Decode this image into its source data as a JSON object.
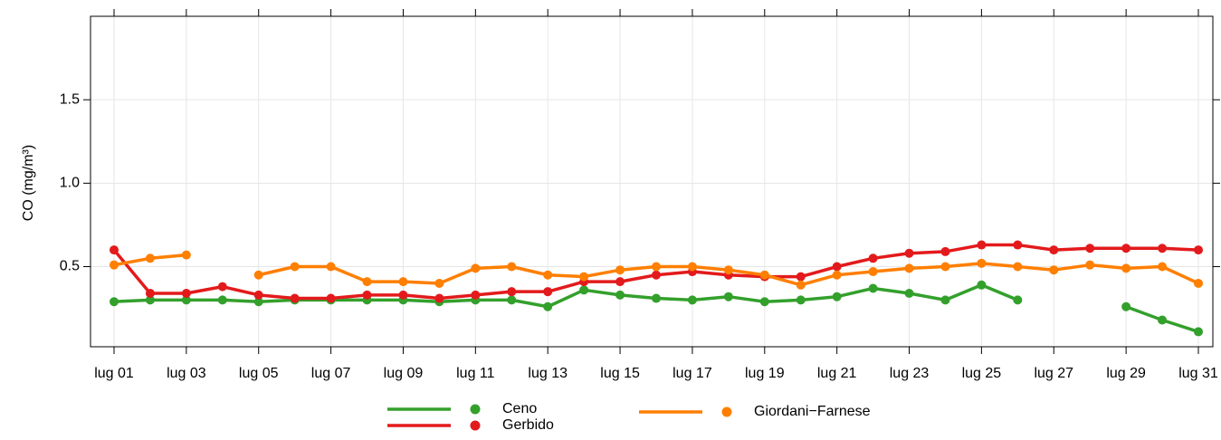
{
  "chart_data": {
    "type": "line",
    "y_label": "CO (mg/m³)",
    "categories": [
      "lug 01",
      null,
      "lug 03",
      null,
      "lug 05",
      null,
      "lug 07",
      null,
      "lug 09",
      null,
      "lug 11",
      null,
      "lug 13",
      null,
      "lug 15",
      null,
      "lug 17",
      null,
      "lug 19",
      null,
      "lug 21",
      null,
      "lug 23",
      null,
      "lug 25",
      null,
      "lug 27",
      null,
      "lug 29",
      null,
      "lug 31"
    ],
    "series": [
      {
        "name": "Ceno",
        "color": "#33a02c",
        "values": [
          0.29,
          0.3,
          0.3,
          0.3,
          0.29,
          0.3,
          0.3,
          0.3,
          0.3,
          0.29,
          0.3,
          0.3,
          0.26,
          0.36,
          0.33,
          0.31,
          0.3,
          0.32,
          0.29,
          0.3,
          0.32,
          0.37,
          0.34,
          0.3,
          0.39,
          0.3,
          null,
          null,
          0.26,
          0.18,
          0.11
        ]
      },
      {
        "name": "Gerbido",
        "color": "#e31a1c",
        "values": [
          0.6,
          0.34,
          0.34,
          0.38,
          0.33,
          0.31,
          0.31,
          0.33,
          0.33,
          0.31,
          0.33,
          0.35,
          0.35,
          0.41,
          0.41,
          0.45,
          0.47,
          0.45,
          0.44,
          0.44,
          0.5,
          0.55,
          0.58,
          0.59,
          0.63,
          0.63,
          0.6,
          0.61,
          0.61,
          0.61,
          0.6
        ]
      },
      {
        "name": "Giordani−Farnese",
        "color": "#ff7f00",
        "values": [
          0.51,
          0.55,
          0.57,
          null,
          0.45,
          0.5,
          0.5,
          0.41,
          0.41,
          0.4,
          0.49,
          0.5,
          0.45,
          0.44,
          0.48,
          0.5,
          0.5,
          0.48,
          0.45,
          0.39,
          0.45,
          0.47,
          0.49,
          0.5,
          0.52,
          0.5,
          0.48,
          0.51,
          0.49,
          0.5,
          0.4
        ]
      }
    ],
    "ylim": [
      0.02,
      2.0
    ],
    "yticks": [
      0.5,
      {
        "value": 1,
        "label": "1.0"
      },
      1.5
    ],
    "grid": true
  }
}
